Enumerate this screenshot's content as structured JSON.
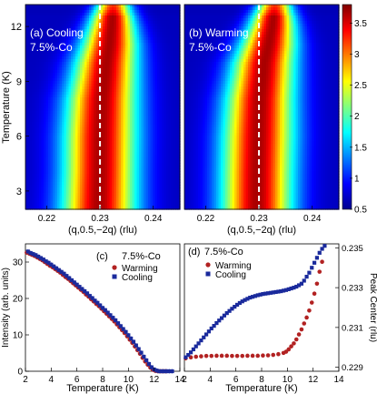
{
  "chart_data": [
    {
      "panel": "(a)",
      "type": "heatmap",
      "title": "(a) Cooling",
      "subtitle": "7.5%-Co",
      "xlabel": "(q,0.5,−2q) (rlu)",
      "ylabel": "Temperature (K)",
      "xlim": [
        0.216,
        0.245
      ],
      "ylim": [
        2.0,
        13.2
      ],
      "xticks": [
        "0.22",
        "0.23",
        "0.24"
      ],
      "yticks": [
        "3",
        "6",
        "9",
        "12"
      ],
      "dashed_line_x": 0.23,
      "ridge": [
        {
          "T": 2.0,
          "q": 0.2298,
          "width": 0.0048
        },
        {
          "T": 4.0,
          "q": 0.23,
          "width": 0.0047
        },
        {
          "T": 6.0,
          "q": 0.2301,
          "width": 0.0047
        },
        {
          "T": 8.0,
          "q": 0.2304,
          "width": 0.0045
        },
        {
          "T": 10.0,
          "q": 0.2312,
          "width": 0.004
        },
        {
          "T": 11.0,
          "q": 0.2318,
          "width": 0.0036
        },
        {
          "T": 12.0,
          "q": 0.2322,
          "width": 0.003
        },
        {
          "T": 13.2,
          "q": 0.2325,
          "width": 0.0022
        }
      ]
    },
    {
      "panel": "(b)",
      "type": "heatmap",
      "title": "(b) Warming",
      "subtitle": "7.5%-Co",
      "xlabel": "(q,0.5,−2q) (rlu)",
      "xlim": [
        0.216,
        0.245
      ],
      "ylim": [
        2.0,
        13.2
      ],
      "xticks": [
        "0.22",
        "0.23",
        "0.24"
      ],
      "dashed_line_x": 0.23,
      "colorbar": {
        "min": 0.5,
        "max": 3.8,
        "ticks": [
          "0.5",
          "1",
          "1.5",
          "2",
          "2.5",
          "3",
          "3.5"
        ]
      },
      "ridge": [
        {
          "T": 2.0,
          "q": 0.2296,
          "width": 0.0046
        },
        {
          "T": 4.0,
          "q": 0.2297,
          "width": 0.0046
        },
        {
          "T": 6.0,
          "q": 0.2299,
          "width": 0.0046
        },
        {
          "T": 8.0,
          "q": 0.2302,
          "width": 0.0044
        },
        {
          "T": 10.0,
          "q": 0.231,
          "width": 0.004
        },
        {
          "T": 11.0,
          "q": 0.2318,
          "width": 0.0036
        },
        {
          "T": 12.0,
          "q": 0.2325,
          "width": 0.003
        },
        {
          "T": 13.2,
          "q": 0.233,
          "width": 0.0022
        }
      ]
    },
    {
      "panel": "(c)",
      "type": "scatter",
      "title": "(c)",
      "subtitle": "7.5%-Co",
      "xlabel": "Temperature (K)",
      "ylabel": "Intensity (arb. units)",
      "xlim": [
        2,
        14
      ],
      "ylim": [
        0,
        35
      ],
      "xticks": [
        "2",
        "4",
        "6",
        "8",
        "10",
        "12",
        "14"
      ],
      "yticks": [
        "0",
        "10",
        "20",
        "30"
      ],
      "series": [
        {
          "name": "Warming",
          "color": "#b22222",
          "marker": "circle",
          "x": [
            2.1,
            2.3,
            2.5,
            2.7,
            2.9,
            3.1,
            3.3,
            3.5,
            3.7,
            3.9,
            4.1,
            4.3,
            4.5,
            4.7,
            4.9,
            5.1,
            5.3,
            5.5,
            5.7,
            5.9,
            6.1,
            6.3,
            6.5,
            6.7,
            6.9,
            7.1,
            7.3,
            7.5,
            7.7,
            7.9,
            8.1,
            8.3,
            8.5,
            8.7,
            8.9,
            9.1,
            9.3,
            9.5,
            9.7,
            9.9,
            10.1,
            10.3,
            10.5,
            10.7,
            10.9,
            11.1,
            11.3,
            11.5,
            11.7,
            11.9,
            12.1,
            12.3,
            12.5,
            12.7,
            12.9
          ],
          "y": [
            32.6,
            32.3,
            32.0,
            31.7,
            31.3,
            30.9,
            30.5,
            30.0,
            29.5,
            29.0,
            28.6,
            28.1,
            27.6,
            27.1,
            26.5,
            25.9,
            25.4,
            24.8,
            24.2,
            23.6,
            23.0,
            22.4,
            21.8,
            21.1,
            20.5,
            19.8,
            19.2,
            18.5,
            17.9,
            17.2,
            16.5,
            15.8,
            15.1,
            14.4,
            13.7,
            12.9,
            12.1,
            11.3,
            10.5,
            9.6,
            8.7,
            7.8,
            6.8,
            5.8,
            4.8,
            3.7,
            2.7,
            1.8,
            1.0,
            0.4,
            0.1,
            0.0,
            0.0,
            0.0,
            0.0
          ]
        },
        {
          "name": "Cooling",
          "color": "#1a2a9c",
          "marker": "square",
          "x": [
            2.2,
            2.4,
            2.6,
            2.8,
            3.0,
            3.2,
            3.4,
            3.6,
            3.8,
            4.0,
            4.2,
            4.4,
            4.6,
            4.8,
            5.0,
            5.2,
            5.4,
            5.6,
            5.8,
            6.0,
            6.2,
            6.4,
            6.6,
            6.8,
            7.0,
            7.2,
            7.4,
            7.6,
            7.8,
            8.0,
            8.2,
            8.4,
            8.6,
            8.8,
            9.0,
            9.2,
            9.4,
            9.6,
            9.8,
            10.0,
            10.2,
            10.4,
            10.6,
            10.8,
            11.0,
            11.2,
            11.4,
            11.6,
            11.8,
            12.0,
            12.2,
            12.4,
            12.6,
            12.8,
            13.0,
            13.2,
            13.4
          ],
          "y": [
            32.9,
            32.5,
            32.2,
            31.9,
            31.5,
            31.1,
            30.7,
            30.2,
            29.8,
            29.3,
            28.8,
            28.3,
            27.8,
            27.3,
            26.8,
            26.2,
            25.6,
            25.0,
            24.4,
            23.8,
            23.2,
            22.6,
            22.0,
            21.4,
            20.7,
            20.1,
            19.4,
            18.8,
            18.1,
            17.4,
            16.8,
            16.1,
            15.4,
            14.7,
            14.0,
            13.2,
            12.4,
            11.6,
            10.8,
            9.9,
            9.0,
            8.1,
            7.1,
            6.1,
            5.1,
            4.0,
            3.0,
            2.0,
            1.1,
            0.5,
            0.2,
            0.0,
            0.0,
            0.0,
            0.0,
            0.0,
            0.0
          ]
        }
      ]
    },
    {
      "panel": "(d)",
      "type": "scatter",
      "title": "(d)",
      "subtitle": "7.5%-Co",
      "xlabel": "Temperature (K)",
      "ylabel": "Peak Center (rlu)",
      "xlim": [
        2,
        14
      ],
      "ylim": [
        0.2288,
        0.2352
      ],
      "xticks": [
        "2",
        "4",
        "6",
        "8",
        "10",
        "12",
        "14"
      ],
      "yticks": [
        "0.229",
        "0.231",
        "0.233",
        "0.235"
      ],
      "series": [
        {
          "name": "Warming",
          "color": "#b22222",
          "marker": "circle",
          "x": [
            2.1,
            2.5,
            2.9,
            3.3,
            3.7,
            4.1,
            4.5,
            4.9,
            5.3,
            5.7,
            6.1,
            6.5,
            6.9,
            7.3,
            7.7,
            8.1,
            8.5,
            8.9,
            9.3,
            9.7,
            9.9,
            10.1,
            10.3,
            10.5,
            10.7,
            10.9,
            11.1,
            11.3,
            11.5,
            11.7,
            11.9,
            12.1,
            12.3,
            12.5,
            12.7
          ],
          "y": [
            0.22945,
            0.2295,
            0.22953,
            0.22955,
            0.22957,
            0.22957,
            0.22958,
            0.22958,
            0.22958,
            0.22957,
            0.22957,
            0.22957,
            0.22958,
            0.22958,
            0.22958,
            0.22959,
            0.2296,
            0.22962,
            0.22966,
            0.22972,
            0.22978,
            0.2299,
            0.23005,
            0.2302,
            0.2304,
            0.23065,
            0.2309,
            0.2312,
            0.2315,
            0.23185,
            0.23225,
            0.2327,
            0.2332,
            0.2338,
            0.2343
          ]
        },
        {
          "name": "Cooling",
          "color": "#1a2a9c",
          "marker": "square",
          "x": [
            2.1,
            2.3,
            2.5,
            2.7,
            2.9,
            3.1,
            3.3,
            3.5,
            3.7,
            3.9,
            4.1,
            4.3,
            4.5,
            4.7,
            4.9,
            5.1,
            5.3,
            5.5,
            5.7,
            5.9,
            6.1,
            6.3,
            6.5,
            6.7,
            6.9,
            7.1,
            7.3,
            7.5,
            7.7,
            7.9,
            8.1,
            8.3,
            8.5,
            8.7,
            8.9,
            9.1,
            9.3,
            9.5,
            9.7,
            9.9,
            10.1,
            10.3,
            10.5,
            10.7,
            10.9,
            11.1,
            11.3,
            11.5,
            11.7,
            11.9,
            12.1,
            12.3,
            12.5,
            12.7,
            12.9
          ],
          "y": [
            0.2295,
            0.22962,
            0.22975,
            0.2299,
            0.23005,
            0.2302,
            0.23035,
            0.2305,
            0.23065,
            0.2308,
            0.23095,
            0.23108,
            0.23122,
            0.23135,
            0.23147,
            0.2316,
            0.23172,
            0.23183,
            0.23194,
            0.23204,
            0.23214,
            0.23223,
            0.23231,
            0.23238,
            0.23244,
            0.2325,
            0.23254,
            0.23258,
            0.23262,
            0.23265,
            0.23268,
            0.2327,
            0.23272,
            0.23274,
            0.23276,
            0.23278,
            0.2328,
            0.23282,
            0.23285,
            0.23288,
            0.23292,
            0.23296,
            0.233,
            0.23305,
            0.23312,
            0.2332,
            0.23335,
            0.23355,
            0.23375,
            0.234,
            0.23425,
            0.2345,
            0.23475,
            0.23495,
            0.2351
          ]
        }
      ]
    }
  ]
}
